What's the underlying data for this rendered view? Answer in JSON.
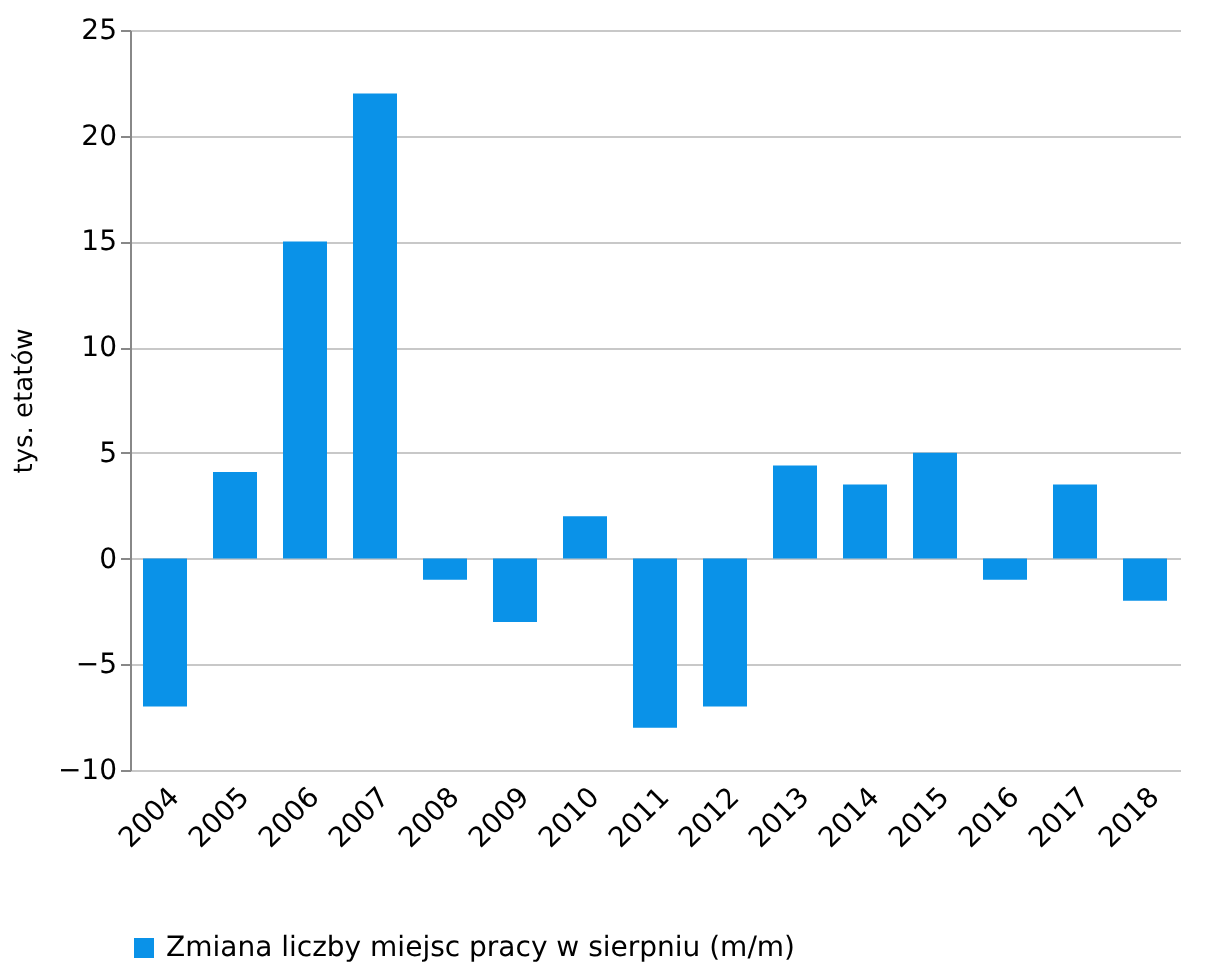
{
  "chart_data": {
    "type": "bar",
    "ylabel": "tys. etatów",
    "categories": [
      "2004",
      "2005",
      "2006",
      "2007",
      "2008",
      "2009",
      "2010",
      "2011",
      "2012",
      "2013",
      "2014",
      "2015",
      "2016",
      "2017",
      "2018"
    ],
    "series": [
      {
        "name": "Zmiana liczby miejsc pracy w sierpniu (m/m)",
        "color": "#0a92e8",
        "values": [
          -7,
          4.1,
          15,
          22,
          -1,
          -3,
          2,
          -8,
          -7,
          4.4,
          3.5,
          5,
          -1,
          3.5,
          -2
        ]
      }
    ],
    "ylim": [
      -10,
      25
    ],
    "yticks": [
      -10,
      -5,
      0,
      5,
      10,
      15,
      20,
      25
    ],
    "grid": "y",
    "legend": "bottom"
  }
}
